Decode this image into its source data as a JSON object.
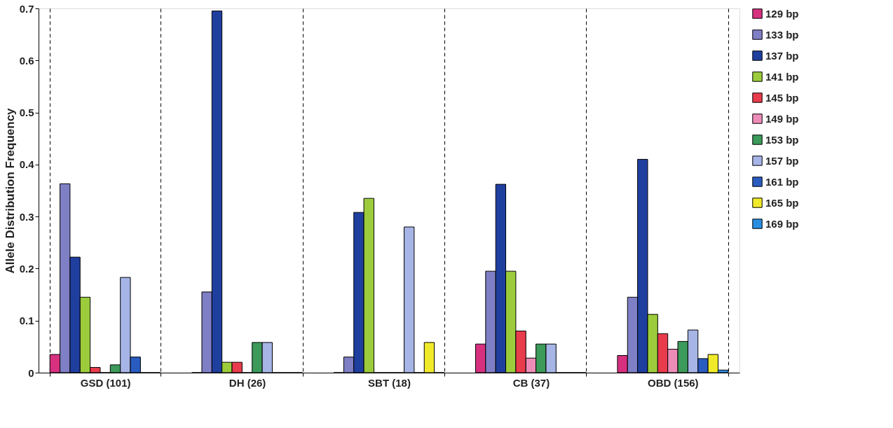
{
  "chart_data": {
    "type": "bar",
    "ylabel": "Allele Distribution Frequency",
    "categories": [
      "GSD (101)",
      "DH (26)",
      "SBT (18)",
      "CB (37)",
      "OBD (156)"
    ],
    "series": [
      {
        "name": "129 bp",
        "color": "#d6307f",
        "values": [
          0.035,
          0,
          0,
          0.055,
          0.033
        ]
      },
      {
        "name": "133 bp",
        "color": "#7f7fc6",
        "values": [
          0.363,
          0.155,
          0.03,
          0.195,
          0.145
        ]
      },
      {
        "name": "137 bp",
        "color": "#1f3f9f",
        "values": [
          0.222,
          0.695,
          0.308,
          0.362,
          0.41
        ]
      },
      {
        "name": "141 bp",
        "color": "#9ccc3c",
        "values": [
          0.145,
          0.02,
          0.335,
          0.195,
          0.112
        ]
      },
      {
        "name": "145 bp",
        "color": "#e83c4c",
        "values": [
          0.01,
          0.02,
          0,
          0.08,
          0.075
        ]
      },
      {
        "name": "149 bp",
        "color": "#ee8cb8",
        "values": [
          0,
          0,
          0,
          0.028,
          0.045
        ]
      },
      {
        "name": "153 bp",
        "color": "#3c9a5a",
        "values": [
          0.015,
          0.058,
          0,
          0.055,
          0.06
        ]
      },
      {
        "name": "157 bp",
        "color": "#a6b4e6",
        "values": [
          0.183,
          0.058,
          0.28,
          0.055,
          0.082
        ]
      },
      {
        "name": "161 bp",
        "color": "#2a5cc0",
        "values": [
          0.03,
          0,
          0,
          0,
          0.027
        ]
      },
      {
        "name": "165 bp",
        "color": "#f0ea2a",
        "values": [
          0,
          0,
          0.058,
          0,
          0.035
        ]
      },
      {
        "name": "169 bp",
        "color": "#2a8ee0",
        "values": [
          0,
          0,
          0,
          0,
          0.005
        ]
      }
    ],
    "ylim": [
      0,
      0.7
    ],
    "yticks": [
      0,
      0.1,
      0.2,
      0.3,
      0.4,
      0.5,
      0.6,
      0.7
    ],
    "grid": "x",
    "legend": "right"
  }
}
